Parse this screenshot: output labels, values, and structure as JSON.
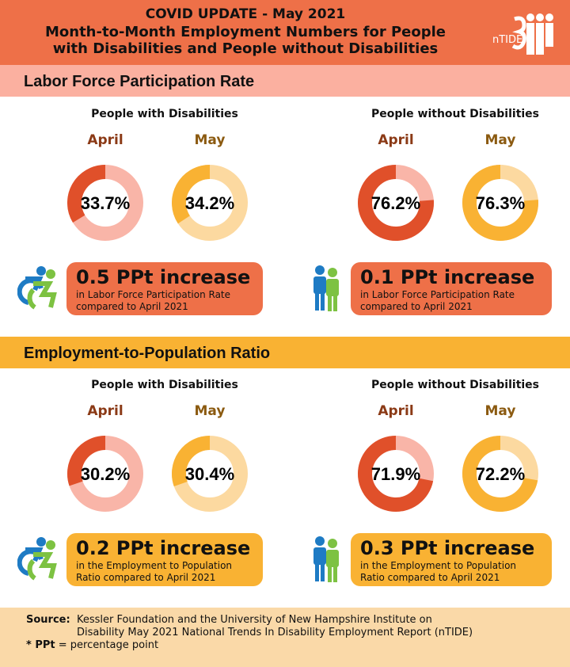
{
  "header": {
    "line1": "COVID UPDATE - May 2021",
    "line2": "Month-to-Month Employment Numbers for People",
    "line3": "with Disabilities and People without Disabilities",
    "logo_text": "nTIDE"
  },
  "sections": [
    {
      "title": "Labor Force Participation Rate",
      "groups": [
        {
          "label": "People with Disabilities",
          "april_label": "April",
          "may_label": "May",
          "april_pct": "33.7%",
          "may_pct": "34.2%",
          "change": "0.5 PPt increase",
          "desc1": "in Labor Force Participation Rate",
          "desc2": "compared to April 2021",
          "icon": "wheelchair-icon"
        },
        {
          "label": "People without Disabilities",
          "april_label": "April",
          "may_label": "May",
          "april_pct": "76.2%",
          "may_pct": "76.3%",
          "change": "0.1 PPt increase",
          "desc1": "in Labor Force Participation Rate",
          "desc2": "compared to April 2021",
          "icon": "people-icon"
        }
      ]
    },
    {
      "title": "Employment-to-Population Ratio",
      "groups": [
        {
          "label": "People with Disabilities",
          "april_label": "April",
          "may_label": "May",
          "april_pct": "30.2%",
          "may_pct": "30.4%",
          "change": "0.2 PPt increase",
          "desc1": "in the Employment to Population",
          "desc2": "Ratio compared to April 2021",
          "icon": "wheelchair-icon"
        },
        {
          "label": "People without Disabilities",
          "april_label": "April",
          "may_label": "May",
          "april_pct": "71.9%",
          "may_pct": "72.2%",
          "change": "0.3 PPt increase",
          "desc1": "in the Employment to Population",
          "desc2": "Ratio compared to April 2021",
          "icon": "people-icon"
        }
      ]
    }
  ],
  "footer": {
    "source_label": "Source:",
    "source1": "Kessler Foundation and the University of New Hampshire Institute on",
    "source2": "Disability May 2021 National Trends In Disability Employment Report (nTIDE)",
    "note_label": "* PPt",
    "note_text": " = percentage point"
  },
  "colors": {
    "header": "#EE7048",
    "lfpr_band": "#FBB0A0",
    "epop_band": "#F9B233",
    "april_fill": "#E0502A",
    "april_track": "#F9B5A8",
    "may_fill": "#F9B233",
    "may_track": "#FCD9A0",
    "lfpr_callout": "#EE7048",
    "epop_callout": "#F9B233",
    "footer": "#FAD9A8"
  },
  "chart_data": [
    {
      "type": "pie",
      "title": "Labor Force Participation Rate - People with Disabilities",
      "categories": [
        "April",
        "May"
      ],
      "values": [
        33.7,
        34.2
      ]
    },
    {
      "type": "pie",
      "title": "Labor Force Participation Rate - People without Disabilities",
      "categories": [
        "April",
        "May"
      ],
      "values": [
        76.2,
        76.3
      ]
    },
    {
      "type": "pie",
      "title": "Employment-to-Population Ratio - People with Disabilities",
      "categories": [
        "April",
        "May"
      ],
      "values": [
        30.2,
        30.4
      ]
    },
    {
      "type": "pie",
      "title": "Employment-to-Population Ratio - People without Disabilities",
      "categories": [
        "April",
        "May"
      ],
      "values": [
        71.9,
        72.2
      ]
    }
  ]
}
